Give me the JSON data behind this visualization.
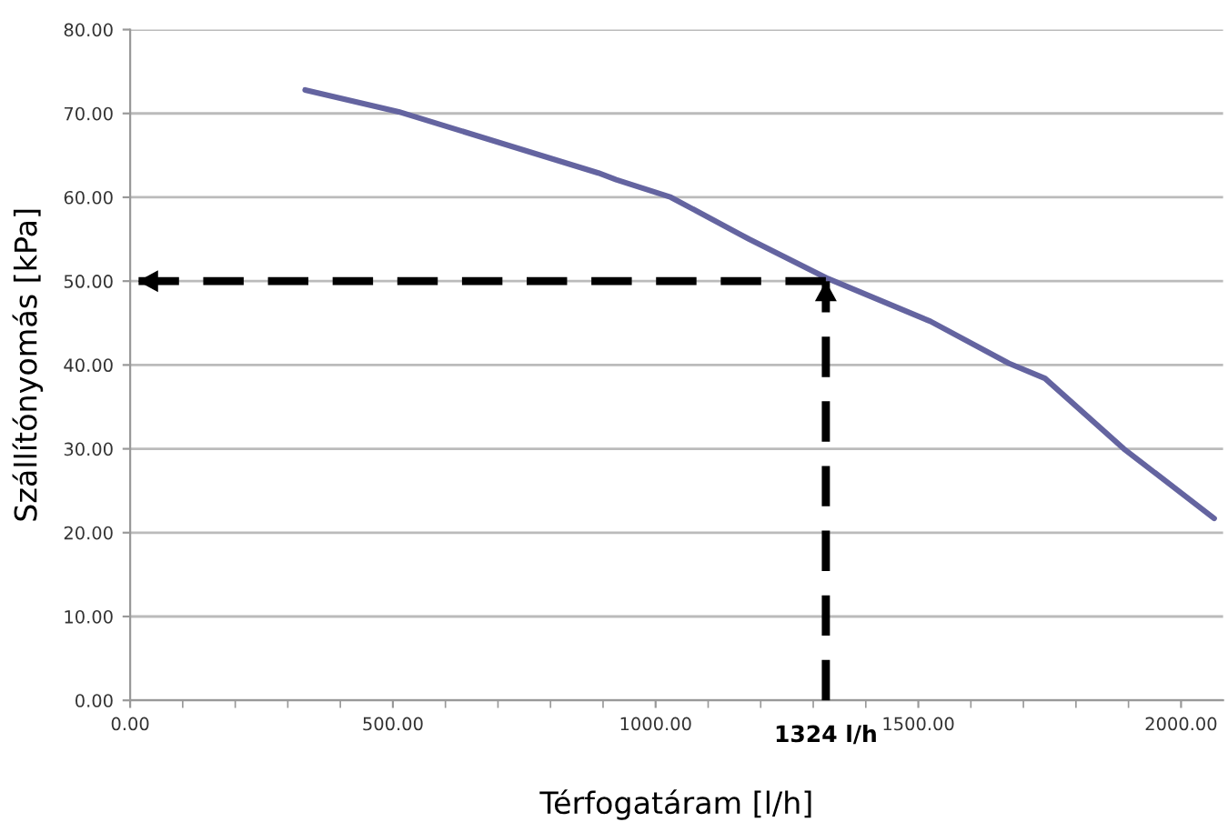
{
  "chart_data": {
    "type": "line",
    "xlabel": "Térfogatáram [l/h]",
    "ylabel": "Szállítónyomás [kPa]",
    "xlim": [
      0,
      2080
    ],
    "xticks": [
      {
        "value": 0,
        "label": "0.00"
      },
      {
        "value": 500,
        "label": "500.00"
      },
      {
        "value": 1000,
        "label": "1000.00"
      },
      {
        "value": 1500,
        "label": "1500.00"
      },
      {
        "value": 2000,
        "label": "2000.00"
      }
    ],
    "ylim": [
      0,
      80
    ],
    "yticks": [
      {
        "value": 0,
        "label": "0.00"
      },
      {
        "value": 10,
        "label": "10.00"
      },
      {
        "value": 20,
        "label": "20.00"
      },
      {
        "value": 30,
        "label": "30.00"
      },
      {
        "value": 40,
        "label": "40.00"
      },
      {
        "value": 50,
        "label": "50.00"
      },
      {
        "value": 60,
        "label": "60.00"
      },
      {
        "value": 70,
        "label": "70.00"
      },
      {
        "value": 80,
        "label": "80.00"
      }
    ],
    "grid": "y",
    "marker": "none",
    "series": [
      {
        "color": "#6464a0",
        "line_style": "solid",
        "x": [
          333,
          511,
          891,
          925,
          1029,
          1178,
          1328,
          1523,
          1672,
          1741,
          1891,
          2063
        ],
        "values": [
          72.8,
          70.2,
          62.9,
          62.1,
          60.0,
          55.0,
          50.3,
          45.2,
          40.2,
          38.4,
          30.0,
          21.7
        ]
      },
      {
        "color": "#000000",
        "line_style": "dashed",
        "x": [
          1324,
          1324
        ],
        "values": [
          0,
          50
        ]
      },
      {
        "color": "#000000",
        "line_style": "dashed",
        "x": [
          1324,
          15
        ],
        "values": [
          50,
          50
        ]
      }
    ],
    "annotations": [
      {
        "text": "1324 l/h",
        "x": 1324,
        "y": 0
      }
    ]
  }
}
